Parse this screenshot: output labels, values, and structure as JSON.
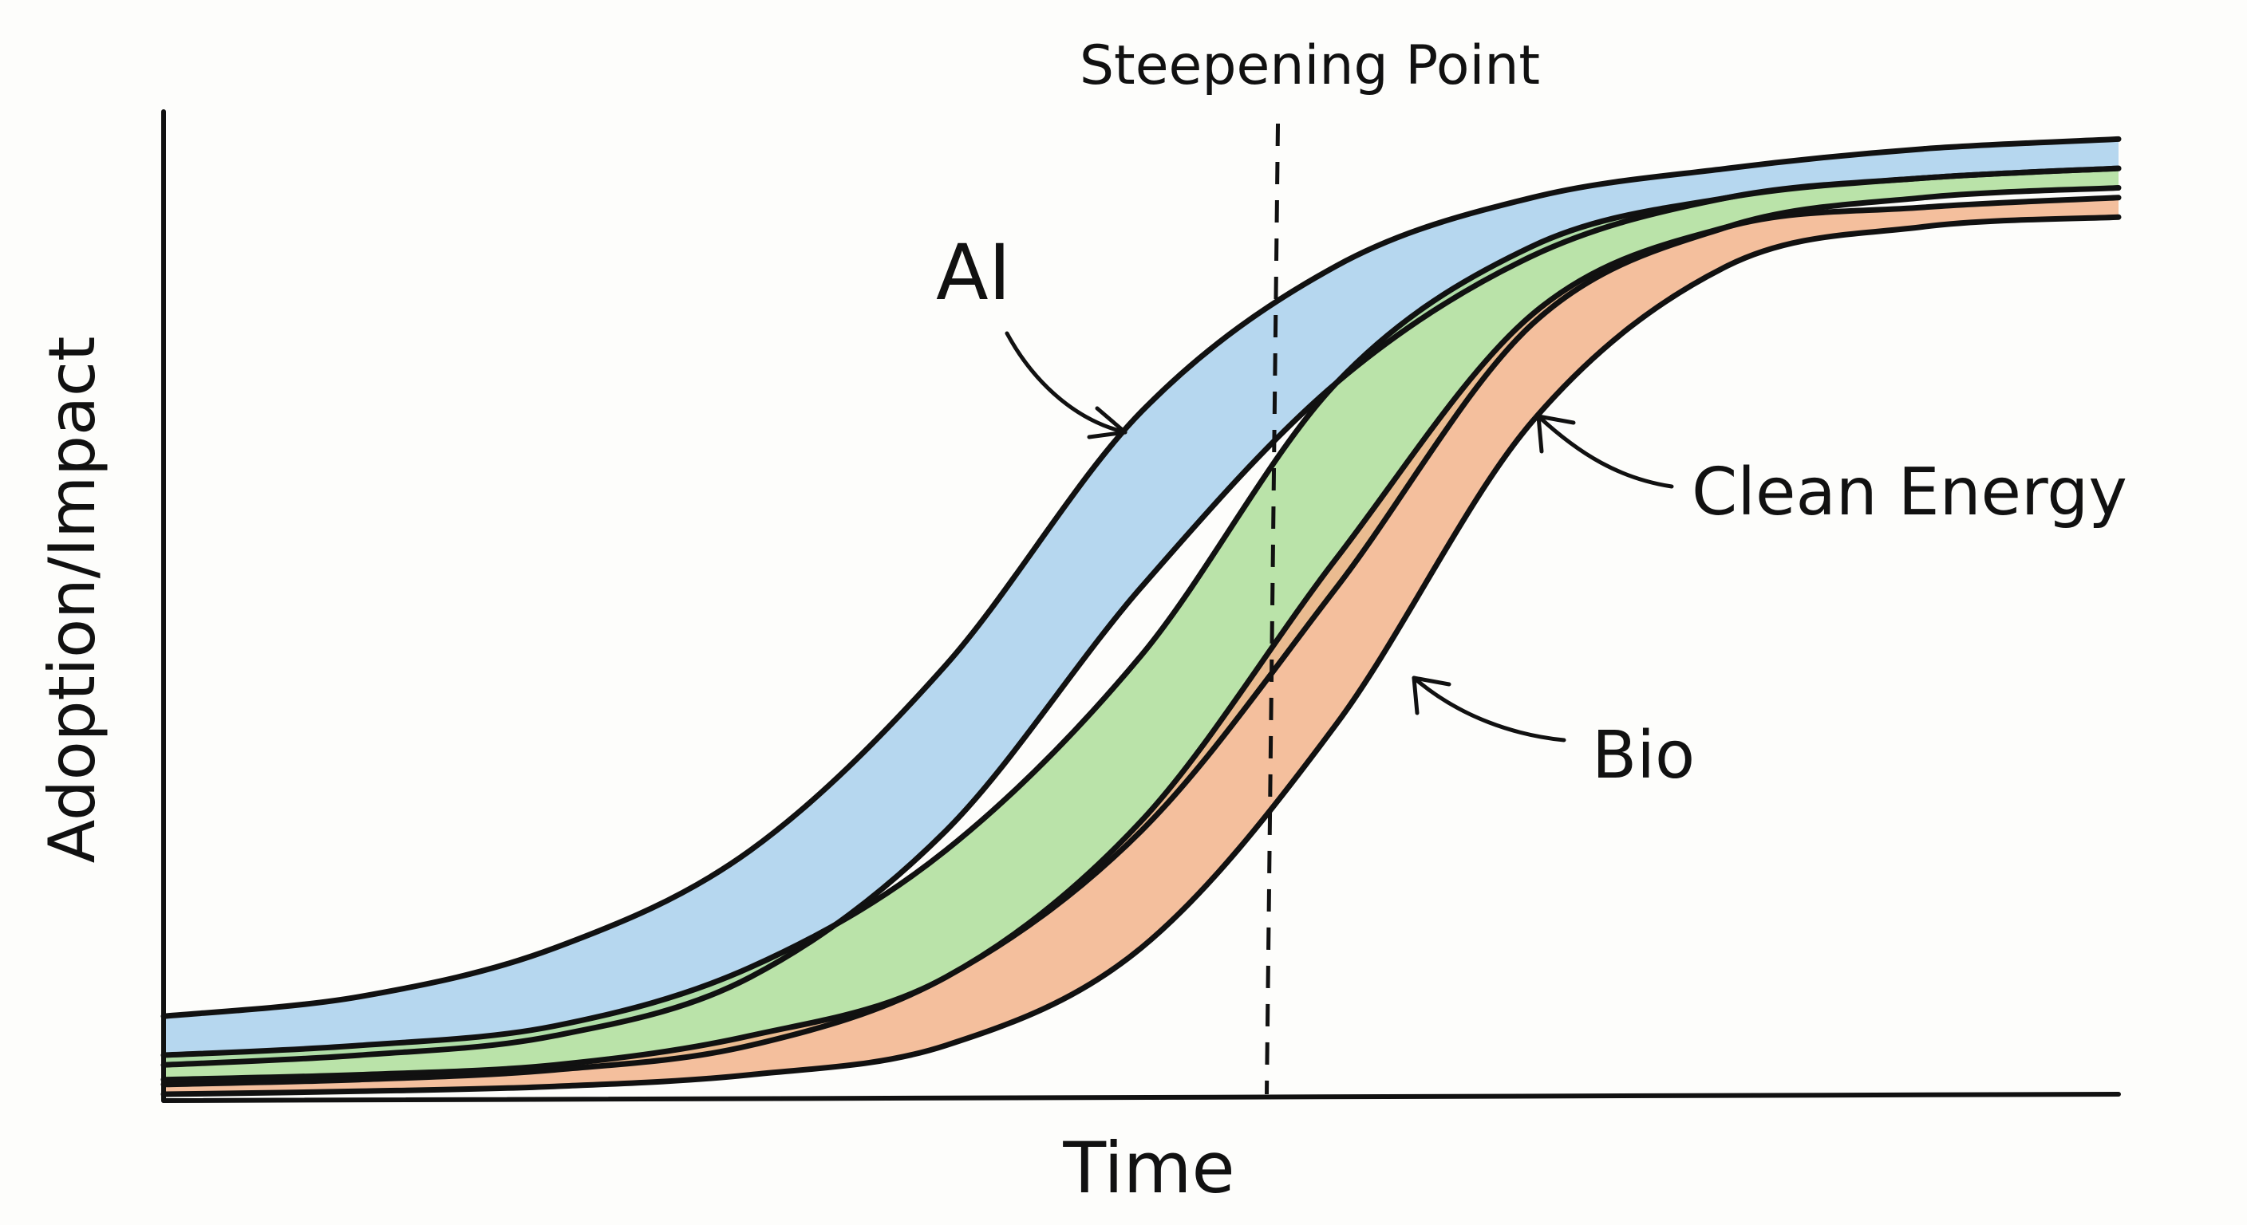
{
  "chart_data": {
    "type": "area",
    "title": "",
    "xlabel": "Time",
    "ylabel": "Adoption/Impact",
    "xlim": [
      0,
      100
    ],
    "ylim": [
      0,
      100
    ],
    "grid": false,
    "legend": "none",
    "annotations": [
      {
        "name": "steepening-point",
        "text": "Steepening Point",
        "x": 57
      }
    ],
    "series": [
      {
        "name": "AI",
        "color": "#a9d0ec",
        "x": [
          0,
          10,
          20,
          30,
          40,
          50,
          60,
          70,
          80,
          90,
          100
        ],
        "lower": [
          3,
          4,
          6,
          12,
          27,
          52,
          73,
          86,
          92,
          94,
          95
        ],
        "upper": [
          8,
          10,
          15,
          25,
          44,
          70,
          85,
          92,
          95,
          97,
          98
        ]
      },
      {
        "name": "Clean Energy",
        "color": "#aede9a",
        "x": [
          0,
          10,
          20,
          30,
          40,
          50,
          60,
          70,
          80,
          90,
          100
        ],
        "lower": [
          1,
          1.5,
          2.5,
          5,
          12,
          27,
          52,
          79,
          89,
          92,
          93
        ],
        "upper": [
          4,
          5,
          7,
          13,
          25,
          45,
          73,
          87,
          92,
          94,
          95
        ]
      },
      {
        "name": "Bio",
        "color": "#f2b48c",
        "x": [
          0,
          10,
          20,
          30,
          40,
          50,
          60,
          70,
          80,
          90,
          100
        ],
        "lower": [
          0,
          0.3,
          0.8,
          2,
          5,
          15,
          38,
          69,
          85,
          89,
          90
        ],
        "upper": [
          1.5,
          2,
          3,
          6,
          12,
          28,
          55,
          80,
          89,
          91,
          92
        ]
      }
    ],
    "labels": {
      "ai": "AI",
      "clean_energy": "Clean Energy",
      "bio": "Bio"
    }
  }
}
